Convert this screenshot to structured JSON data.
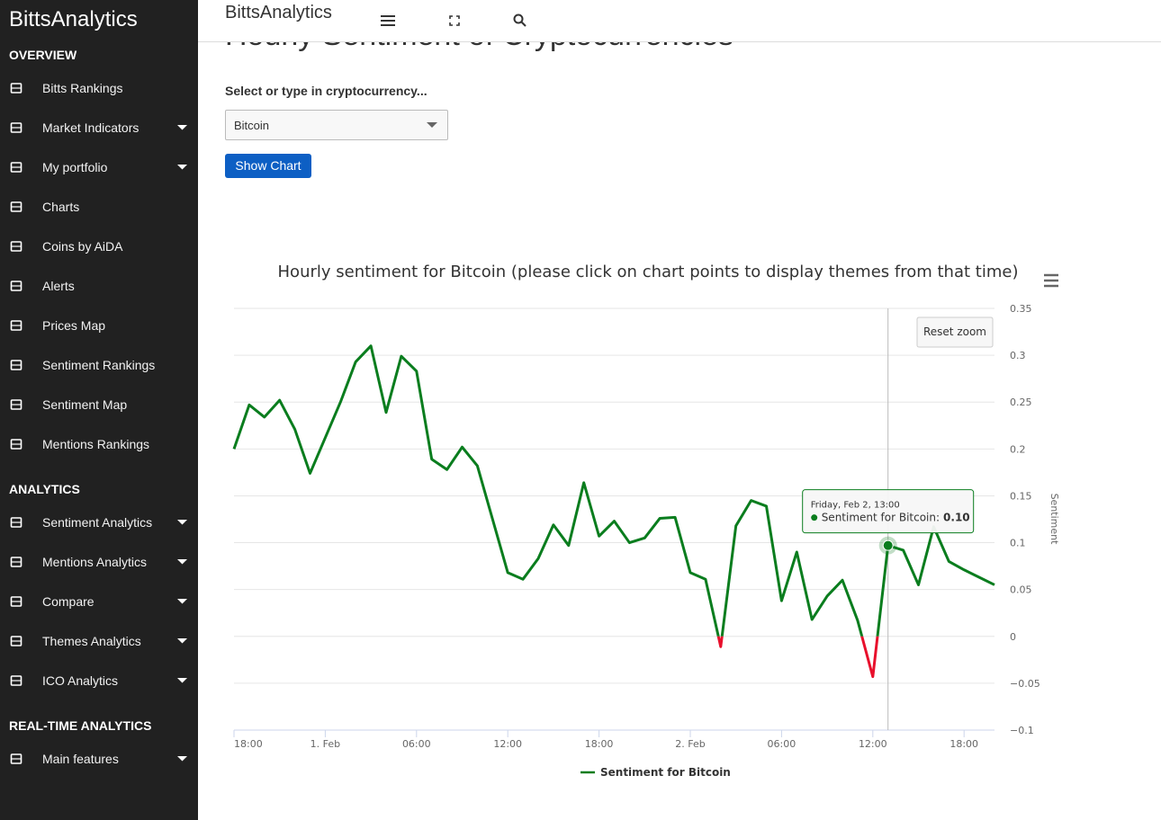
{
  "sidebar": {
    "brand": "BittsAnalytics",
    "sections": [
      {
        "title": "OVERVIEW",
        "items": [
          {
            "label": "Bitts Rankings",
            "expandable": false
          },
          {
            "label": "Market Indicators",
            "expandable": true
          },
          {
            "label": "My portfolio",
            "expandable": true
          },
          {
            "label": "Charts",
            "expandable": false
          },
          {
            "label": "Coins by AiDA",
            "expandable": false
          },
          {
            "label": "Alerts",
            "expandable": false
          },
          {
            "label": "Prices Map",
            "expandable": false
          },
          {
            "label": "Sentiment Rankings",
            "expandable": false
          },
          {
            "label": "Sentiment Map",
            "expandable": false
          },
          {
            "label": "Mentions Rankings",
            "expandable": false
          }
        ]
      },
      {
        "title": "ANALYTICS",
        "items": [
          {
            "label": "Sentiment Analytics",
            "expandable": true
          },
          {
            "label": "Mentions Analytics",
            "expandable": true
          },
          {
            "label": "Compare",
            "expandable": true
          },
          {
            "label": "Themes Analytics",
            "expandable": true
          },
          {
            "label": "ICO Analytics",
            "expandable": true
          }
        ]
      },
      {
        "title": "REAL-TIME ANALYTICS",
        "items": [
          {
            "label": "Main features",
            "expandable": true
          }
        ]
      }
    ]
  },
  "header": {
    "title": "BittsAnalytics"
  },
  "page": {
    "heading": "Hourly Sentiment of Cryptocurrencies",
    "select_label": "Select or type in cryptocurrency...",
    "select_value": "Bitcoin",
    "button": "Show Chart"
  },
  "chart_data": {
    "type": "line",
    "title": "Hourly sentiment for Bitcoin (please click on chart points to display themes from that time)",
    "y_label": "Sentiment",
    "reset_zoom": "Reset zoom",
    "x": [
      "31. Jan 18:00",
      "31. Jan 19:00",
      "31. Jan 20:00",
      "31. Jan 21:00",
      "31. Jan 22:00",
      "31. Jan 23:00",
      "1. Feb 00:00",
      "1. Feb 01:00",
      "1. Feb 02:00",
      "1. Feb 03:00",
      "1. Feb 04:00",
      "1. Feb 05:00",
      "1. Feb 06:00",
      "1. Feb 07:00",
      "1. Feb 08:00",
      "1. Feb 09:00",
      "1. Feb 10:00",
      "1. Feb 11:00",
      "1. Feb 12:00",
      "1. Feb 13:00",
      "1. Feb 14:00",
      "1. Feb 15:00",
      "1. Feb 16:00",
      "1. Feb 17:00",
      "1. Feb 18:00",
      "1. Feb 19:00",
      "1. Feb 20:00",
      "1. Feb 21:00",
      "1. Feb 22:00",
      "1. Feb 23:00",
      "2. Feb 00:00",
      "2. Feb 01:00",
      "2. Feb 02:00",
      "2. Feb 03:00",
      "2. Feb 04:00",
      "2. Feb 05:00",
      "2. Feb 06:00",
      "2. Feb 07:00",
      "2. Feb 08:00",
      "2. Feb 09:00",
      "2. Feb 10:00",
      "2. Feb 11:00",
      "2. Feb 12:00",
      "2. Feb 13:00",
      "2. Feb 14:00",
      "2. Feb 15:00",
      "2. Feb 16:00",
      "2. Feb 17:00",
      "2. Feb 18:00",
      "2. Feb 19:00",
      "2. Feb 20:00"
    ],
    "series": [
      {
        "name": "Sentiment for Bitcoin",
        "color": "#0a7d1e",
        "negative_color": "#e8102c",
        "values": [
          0.2,
          0.247,
          0.234,
          0.252,
          0.221,
          0.174,
          0.212,
          0.25,
          0.293,
          0.31,
          0.239,
          0.299,
          0.283,
          0.189,
          0.178,
          0.202,
          0.182,
          0.125,
          0.068,
          0.061,
          0.083,
          0.119,
          0.097,
          0.164,
          0.107,
          0.123,
          0.1,
          0.105,
          0.126,
          0.127,
          0.068,
          0.061,
          -0.011,
          0.118,
          0.145,
          0.139,
          0.038,
          0.09,
          0.018,
          0.043,
          0.06,
          0.017,
          -0.043,
          0.097,
          0.092,
          0.055,
          0.117,
          0.08,
          0.071,
          0.063,
          0.055
        ]
      }
    ],
    "xlim": [
      "31. Jan 18:00",
      "2. Feb 20:00"
    ],
    "xticks": [
      {
        "value": "31. Jan 18:00",
        "label": "18:00"
      },
      {
        "value": "1. Feb 00:00",
        "label": "1. Feb"
      },
      {
        "value": "1. Feb 06:00",
        "label": "06:00"
      },
      {
        "value": "1. Feb 12:00",
        "label": "12:00"
      },
      {
        "value": "1. Feb 18:00",
        "label": "18:00"
      },
      {
        "value": "2. Feb 00:00",
        "label": "2. Feb"
      },
      {
        "value": "2. Feb 06:00",
        "label": "06:00"
      },
      {
        "value": "2. Feb 12:00",
        "label": "12:00"
      },
      {
        "value": "2. Feb 18:00",
        "label": "18:00"
      }
    ],
    "ylim": [
      -0.1,
      0.35
    ],
    "yticks": [
      {
        "value": -0.1,
        "label": "−0.1"
      },
      {
        "value": -0.05,
        "label": "−0.05"
      },
      0,
      0.05,
      0.1,
      0.15,
      0.2,
      0.25,
      0.3,
      0.35
    ],
    "grid": true,
    "legend": "bottom",
    "tooltip": {
      "x": "2. Feb 13:00",
      "title": "Friday, Feb 2, 13:00",
      "text": "Sentiment for Bitcoin:",
      "value_label": "0.10"
    }
  }
}
